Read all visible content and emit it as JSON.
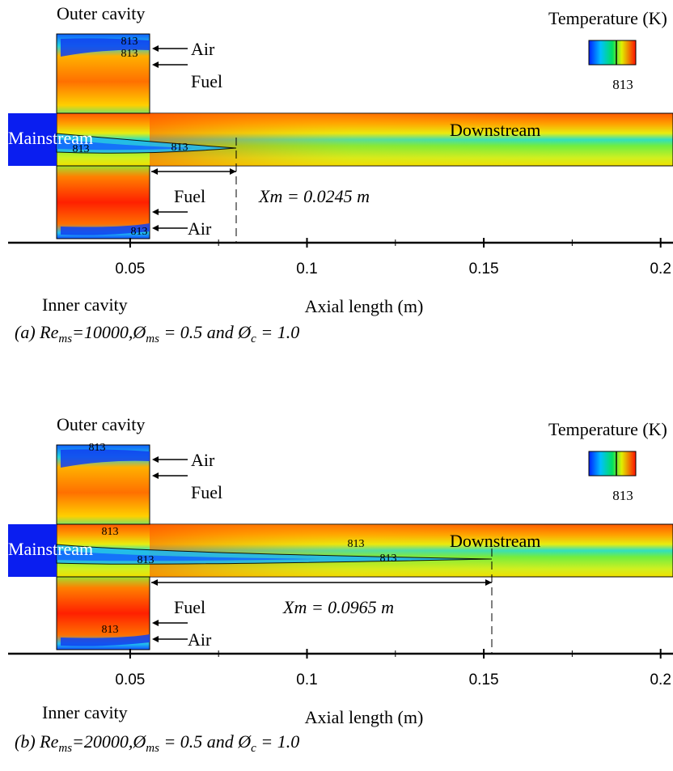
{
  "chart_data": [
    {
      "type": "contour",
      "annotations": {
        "outer_cavity": "Outer cavity",
        "air_top": "Air",
        "fuel_top": "Fuel",
        "legend_title": "Temperature (K)",
        "legend_value": "813",
        "mainstream": "Mainstream",
        "downstream": "Downstream",
        "xm": "Xm = 0.0245 m",
        "fuel_bottom": "Fuel",
        "air_bottom": "Air",
        "inner_cavity": "Inner cavity"
      },
      "contour_labels": [
        "813",
        "813",
        "813",
        "813",
        "813"
      ],
      "x_label": "Axial length (m)",
      "xlim": [
        0.0132,
        0.2035
      ],
      "xticks": [
        0.05,
        0.1,
        0.15,
        0.2
      ],
      "caption": {
        "lead": "(a) Re",
        "sub1": "ms",
        "mid1": "=10000,Ø",
        "sub2": "ms",
        "mid2": " = 0.5 and Ø",
        "sub3": "c",
        "tail": " = 1.0"
      }
    },
    {
      "type": "contour",
      "annotations": {
        "outer_cavity": "Outer cavity",
        "air_top": "Air",
        "fuel_top": "Fuel",
        "legend_title": "Temperature (K)",
        "legend_value": "813",
        "mainstream": "Mainstream",
        "downstream": "Downstream",
        "xm": "Xm = 0.0965 m",
        "fuel_bottom": "Fuel",
        "air_bottom": "Air",
        "inner_cavity": "Inner cavity"
      },
      "contour_labels": [
        "813",
        "813",
        "813",
        "813",
        "813",
        "813"
      ],
      "x_label": "Axial length (m)",
      "xlim": [
        0.0132,
        0.2035
      ],
      "xticks": [
        0.05,
        0.1,
        0.15,
        0.2
      ],
      "caption": {
        "lead": "(b) Re",
        "sub1": "ms",
        "mid1": "=20000,Ø",
        "sub2": "ms",
        "mid2": " = 0.5 and Ø",
        "sub3": "c",
        "tail": " = 1.0"
      }
    }
  ]
}
